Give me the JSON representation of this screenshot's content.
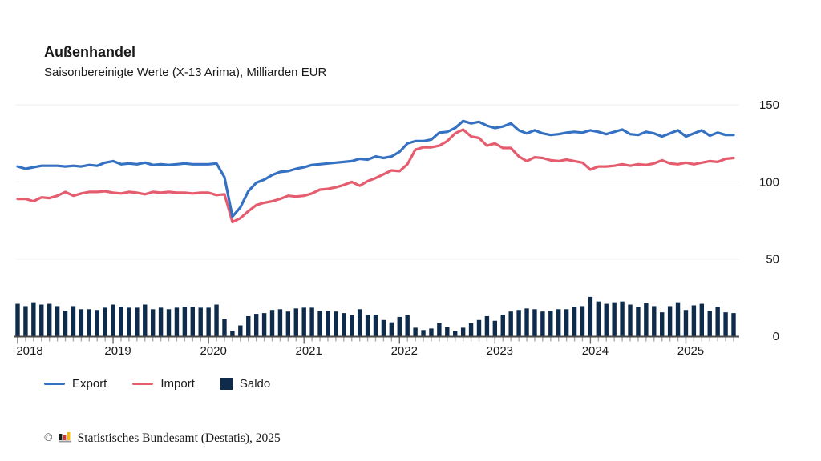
{
  "header": {
    "title": "Außenhandel",
    "subtitle": "Saisonbereinigte Werte (X-13 Arima), Milliarden EUR"
  },
  "legend": {
    "items": [
      {
        "label": "Export",
        "swatch": "line",
        "color": "#3471C2"
      },
      {
        "label": "Import",
        "swatch": "line",
        "color": "#E55C6E"
      },
      {
        "label": "Saldo",
        "swatch": "square",
        "color": "#0F2B4C"
      }
    ]
  },
  "footer": {
    "copyright": "©",
    "logo_icon": "destatis-bars-icon",
    "source": "Statistisches Bundesamt (Destatis), 2025"
  },
  "chart_data": {
    "type": "line+bar",
    "unit": "Milliarden EUR",
    "frequency": "monthly",
    "start_month": "2018-01",
    "end_month": "2025-07",
    "grid": "horizontal",
    "legend_position": "bottom",
    "y_axis": {
      "side": "right",
      "ticks": [
        0,
        50,
        100,
        150
      ],
      "ylim": [
        0,
        150
      ]
    },
    "x_axis": {
      "years": [
        2018,
        2019,
        2020,
        2021,
        2022,
        2023,
        2024,
        2025
      ]
    },
    "colors": {
      "gridline": "#EDEDED",
      "axis_line": "#4A4A4A",
      "minor_tick": "#A8A8A8",
      "major_tick": "#6E6E6E",
      "text": "#1A1A1A"
    },
    "series": [
      {
        "name": "Export",
        "type": "line",
        "color": "#3471C2",
        "values": [
          110,
          108.5,
          109.5,
          110.5,
          110.5,
          110.5,
          110,
          110.5,
          110,
          111,
          110.5,
          112.5,
          113.5,
          111.5,
          112,
          111.5,
          112.5,
          111,
          111.5,
          111,
          111.5,
          112,
          111.5,
          111.5,
          111.5,
          112,
          103,
          77.5,
          83.5,
          94,
          99.5,
          101.5,
          104.5,
          106.5,
          107,
          108.5,
          109.5,
          111,
          111.5,
          112,
          112.5,
          113,
          113.5,
          115,
          114.5,
          116.5,
          115.5,
          116.5,
          119.5,
          125,
          126.5,
          126.5,
          127.5,
          132,
          132.5,
          135,
          139.5,
          138,
          139,
          136.5,
          135,
          136,
          138,
          133.5,
          131.5,
          133.5,
          131.5,
          130.5,
          131,
          132,
          132.5,
          132,
          133.5,
          132.5,
          131,
          132.5,
          134,
          131,
          130.5,
          132.5,
          131.5,
          129.5,
          131.5,
          133.5,
          129.5,
          131.5,
          133.5,
          130,
          132,
          130.5,
          130.5
        ]
      },
      {
        "name": "Import",
        "type": "line",
        "color": "#E55C6E",
        "values": [
          89,
          89,
          87.5,
          90,
          89.5,
          91,
          93.5,
          91,
          92.5,
          93.5,
          93.5,
          94,
          93,
          92.5,
          93.5,
          93,
          92,
          93.5,
          93,
          93.5,
          93,
          93,
          92.5,
          93,
          93,
          91.5,
          92,
          74,
          76.5,
          81,
          85,
          86.5,
          87.5,
          89,
          91,
          90.5,
          91,
          92.5,
          95,
          95.5,
          96.5,
          98,
          100,
          97.5,
          100.5,
          102.5,
          105,
          107.5,
          107,
          111.5,
          121,
          122.5,
          122.5,
          123.5,
          126.5,
          131.5,
          134,
          129.5,
          128.5,
          123.5,
          125,
          122,
          122,
          116.5,
          113.5,
          116,
          115.5,
          114,
          113.5,
          114.5,
          113.5,
          112.5,
          108,
          110,
          110,
          110.5,
          111.5,
          110.5,
          111.5,
          111,
          112,
          114,
          112,
          111.5,
          112.5,
          111.5,
          112.5,
          113.5,
          113,
          115,
          115.5
        ]
      },
      {
        "name": "Saldo",
        "type": "bar",
        "color": "#0F2B4C",
        "values": [
          21,
          19.5,
          22,
          20.5,
          21,
          19.5,
          16.5,
          19.5,
          17.5,
          17.5,
          17,
          18.5,
          20.5,
          19,
          18.5,
          18.5,
          20.5,
          17.5,
          18.5,
          17.5,
          18.5,
          19,
          19,
          18.5,
          18.5,
          20.5,
          11,
          3.5,
          7,
          13,
          14.5,
          15,
          17,
          17.5,
          16,
          18,
          18.5,
          18.5,
          16.5,
          16.5,
          16,
          15,
          13.5,
          17.5,
          14,
          14,
          10.5,
          9,
          12.5,
          13.5,
          5.5,
          4,
          5,
          8.5,
          6,
          3.5,
          5.5,
          8.5,
          10.5,
          13,
          10,
          14,
          16,
          17,
          18,
          17.5,
          16,
          16.5,
          17.5,
          17.5,
          19,
          19.5,
          25.5,
          22.5,
          21,
          22,
          22.5,
          20.5,
          19,
          21.5,
          19.5,
          15.5,
          19.5,
          22,
          17,
          20,
          21,
          16.5,
          19,
          15.5,
          15
        ]
      }
    ]
  }
}
